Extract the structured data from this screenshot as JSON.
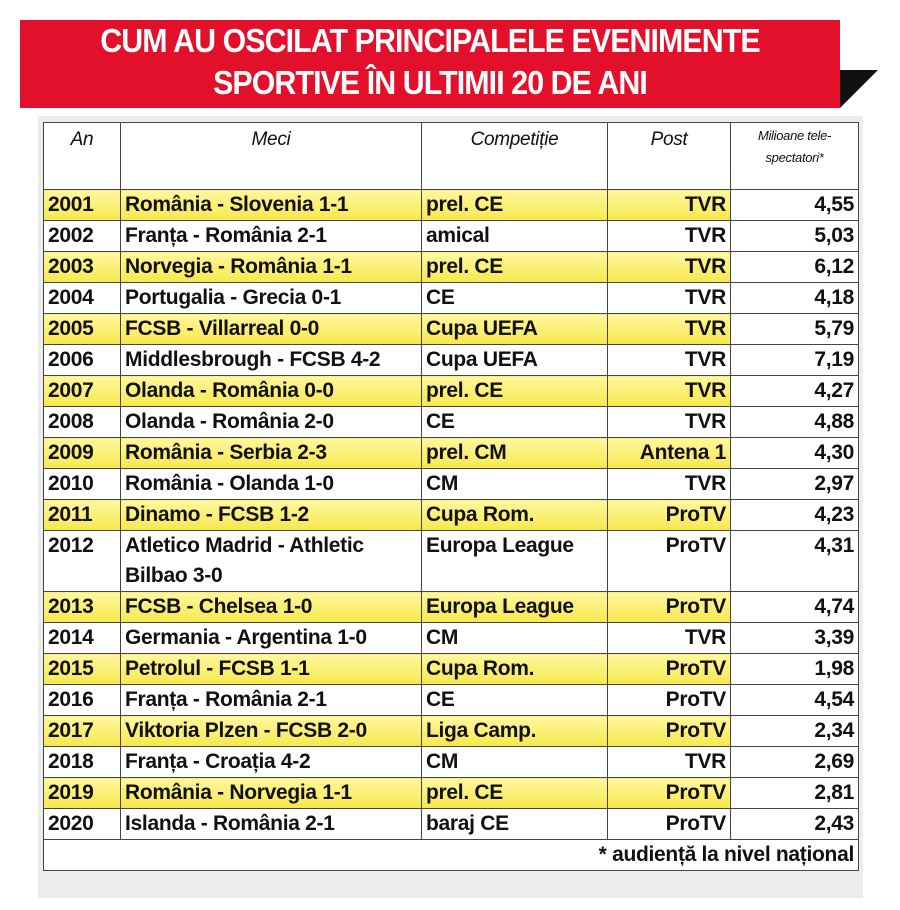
{
  "header": {
    "title_lines": [
      "CUM AU OSCILAT PRINCIPALELE EVENIMENTE",
      "SPORTIVE ÎN ULTIMII 20 DE ANI"
    ]
  },
  "table": {
    "columns": [
      "An",
      "Meci",
      "Competiție",
      "Post",
      "Milioane tele-spectatori*"
    ],
    "rows": [
      [
        "2001",
        "România - Slovenia 1-1",
        "prel. CE",
        "TVR",
        "4,55"
      ],
      [
        "2002",
        "Franța - România 2-1",
        "amical",
        "TVR",
        "5,03"
      ],
      [
        "2003",
        "Norvegia - România 1-1",
        "prel. CE",
        "TVR",
        "6,12"
      ],
      [
        "2004",
        "Portugalia - Grecia 0-1",
        "CE",
        "TVR",
        "4,18"
      ],
      [
        "2005",
        "FCSB - Villarreal 0-0",
        "Cupa UEFA",
        "TVR",
        "5,79"
      ],
      [
        "2006",
        "Middlesbrough - FCSB 4-2",
        "Cupa UEFA",
        "TVR",
        "7,19"
      ],
      [
        "2007",
        "Olanda - România 0-0",
        "prel. CE",
        "TVR",
        "4,27"
      ],
      [
        "2008",
        "Olanda - România 2-0",
        "CE",
        "TVR",
        "4,88"
      ],
      [
        "2009",
        "România - Serbia 2-3",
        "prel. CM",
        "Antena 1",
        "4,30"
      ],
      [
        "2010",
        "România - Olanda 1-0",
        "CM",
        "TVR",
        "2,97"
      ],
      [
        "2011",
        "Dinamo - FCSB 1-2",
        "Cupa Rom.",
        "ProTV",
        "4,23"
      ],
      [
        "2012",
        "Atletico Madrid - Athletic Bilbao 3-0",
        "Europa League",
        "ProTV",
        "4,31"
      ],
      [
        "2013",
        "FCSB - Chelsea 1-0",
        "Europa League",
        "ProTV",
        "4,74"
      ],
      [
        "2014",
        "Germania - Argentina 1-0",
        "CM",
        "TVR",
        "3,39"
      ],
      [
        "2015",
        "Petrolul - FCSB 1-1",
        "Cupa Rom.",
        "ProTV",
        "1,98"
      ],
      [
        "2016",
        "Franța - România 2-1",
        "CE",
        "ProTV",
        "4,54"
      ],
      [
        "2017",
        "Viktoria Plzen - FCSB 2-0",
        "Liga Camp.",
        "ProTV",
        "2,34"
      ],
      [
        "2018",
        "Franța - Croația 4-2",
        "CM",
        "TVR",
        "2,69"
      ],
      [
        "2019",
        "România - Norvegia 1-1",
        "prel. CE",
        "ProTV",
        "2,81"
      ],
      [
        "2020",
        "Islanda - România 2-1",
        "baraj CE",
        "ProTV",
        "2,43"
      ]
    ],
    "footnote": "* audiență la nivel național"
  }
}
